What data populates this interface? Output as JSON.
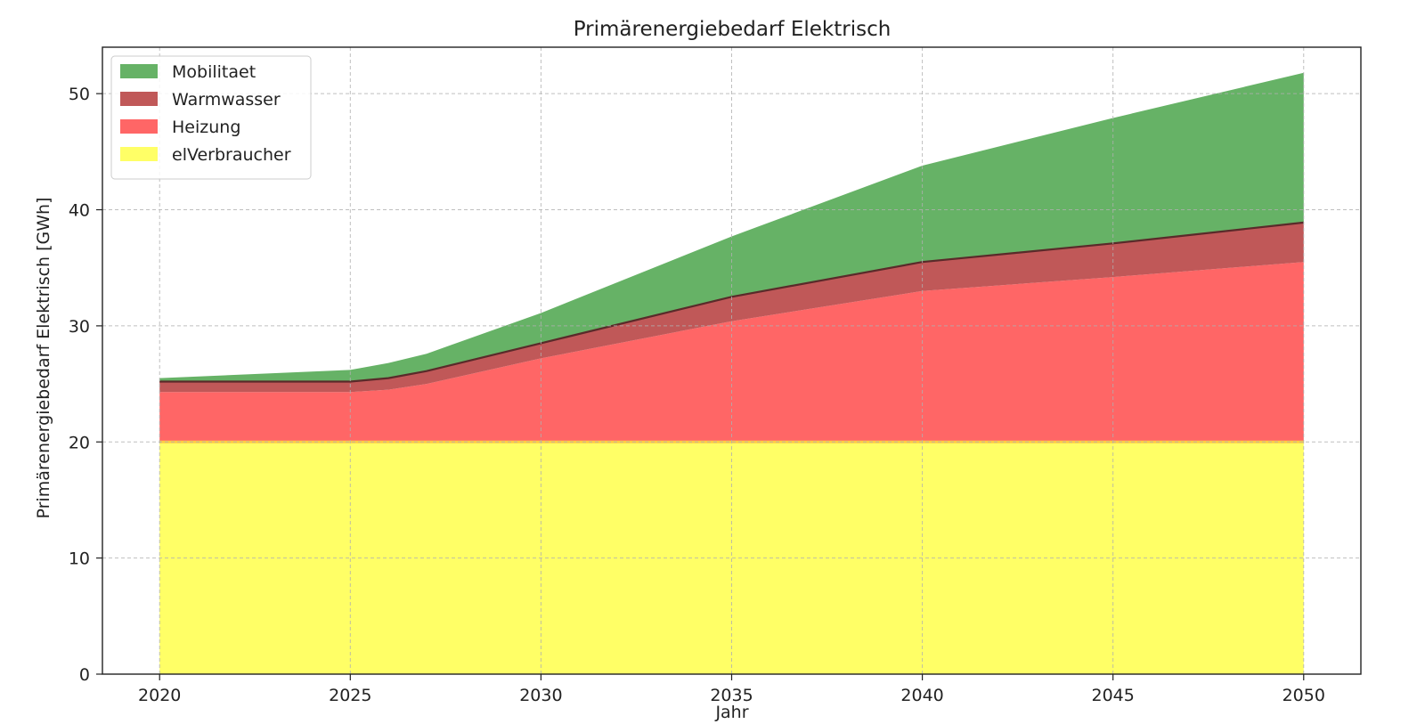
{
  "chart_data": {
    "type": "area",
    "title": "Primärenergiebedarf Elektrisch",
    "xlabel": "Jahr",
    "ylabel": "Primärenergiebedarf Elektrisch [GWh]",
    "xlim": [
      2018.5,
      2051.5
    ],
    "ylim": [
      0,
      54
    ],
    "x_ticks": [
      2020,
      2025,
      2030,
      2035,
      2040,
      2045,
      2050
    ],
    "y_ticks": [
      0,
      10,
      20,
      30,
      40,
      50
    ],
    "grid": true,
    "legend_position": "top-left",
    "x": [
      2020,
      2025,
      2026,
      2027,
      2030,
      2035,
      2040,
      2045,
      2050
    ],
    "series": [
      {
        "name": "elVerbraucher",
        "color": "#ffff66",
        "values": [
          20.0,
          20.0,
          20.0,
          20.0,
          20.0,
          20.0,
          20.0,
          20.0,
          20.0
        ]
      },
      {
        "name": "Heizung",
        "color": "#ff6666",
        "values": [
          4.3,
          4.3,
          4.5,
          5.0,
          7.2,
          10.4,
          13.0,
          14.2,
          15.5
        ]
      },
      {
        "name": "Warmwasser",
        "color": "#c05858",
        "values": [
          0.9,
          0.9,
          1.0,
          1.1,
          1.3,
          2.1,
          2.5,
          2.9,
          3.4
        ]
      },
      {
        "name": "Mobilitaet",
        "color": "#66b266",
        "values": [
          0.3,
          1.0,
          1.3,
          1.5,
          2.6,
          5.2,
          8.3,
          10.8,
          12.9
        ]
      }
    ],
    "legend_order": [
      "Mobilitaet",
      "Warmwasser",
      "Heizung",
      "elVerbraucher"
    ]
  }
}
